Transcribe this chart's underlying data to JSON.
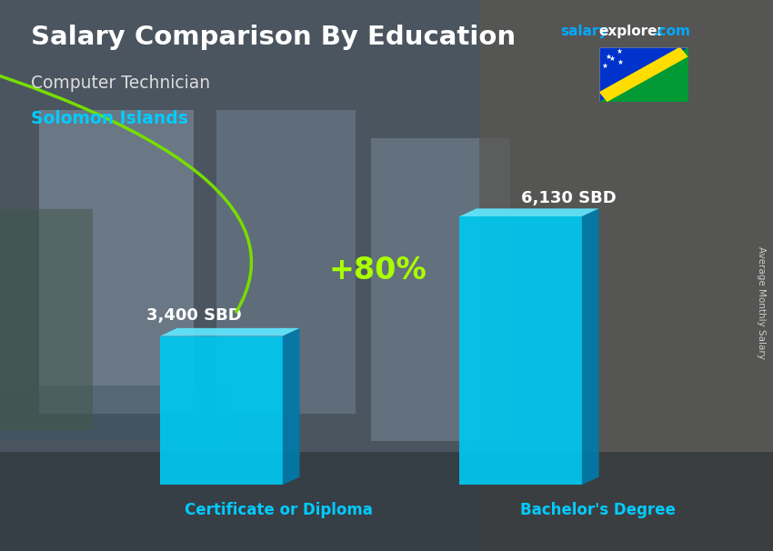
{
  "title": "Salary Comparison By Education",
  "subtitle1": "Computer Technician",
  "subtitle2": "Solomon Islands",
  "ylabel": "Average Monthly Salary",
  "categories": [
    "Certificate or Diploma",
    "Bachelor's Degree"
  ],
  "values": [
    3400,
    6130
  ],
  "value_labels": [
    "3,400 SBD",
    "6,130 SBD"
  ],
  "pct_label": "+80%",
  "bar_color_face": "#00c8f0",
  "bar_color_dark": "#007aaa",
  "bar_color_top": "#60e8ff",
  "arrow_color": "#77dd00",
  "pct_color": "#aaff00",
  "title_color": "#ffffff",
  "subtitle1_color": "#dddddd",
  "subtitle2_color": "#00ccff",
  "label_color": "#ffffff",
  "category_color": "#00ccff",
  "bg_color": "#5a6570",
  "ylim": [
    0,
    7800
  ],
  "bar_positions": [
    0.28,
    0.72
  ],
  "bar_width": 0.18,
  "site_salary_color": "#00aaff",
  "site_explorer_color": "#ffffff",
  "site_com_color": "#00aaff"
}
